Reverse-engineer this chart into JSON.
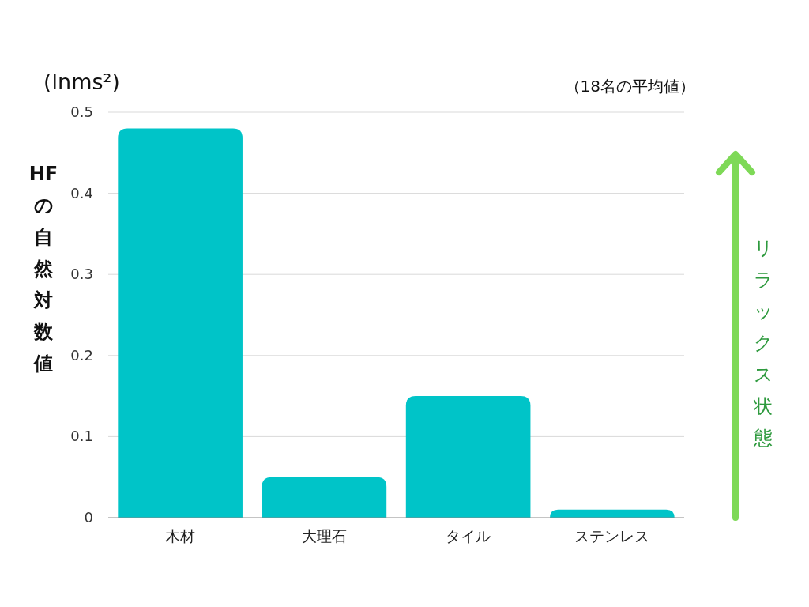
{
  "chart_data": {
    "type": "bar",
    "ylabel": "HFの自然対数値",
    "annotations": [
      "(lnms²)",
      "（18名の平均値）",
      "リラックス状態"
    ],
    "categories": [
      "木材",
      "大理石",
      "タイル",
      "ステンレス"
    ],
    "values": [
      0.48,
      0.05,
      0.15,
      0.01
    ],
    "color": "#00c4c8",
    "ylim": [
      0,
      0.5
    ],
    "yticks": [
      0,
      0.1,
      0.2,
      0.3,
      0.4,
      0.5
    ],
    "grid": "y"
  }
}
